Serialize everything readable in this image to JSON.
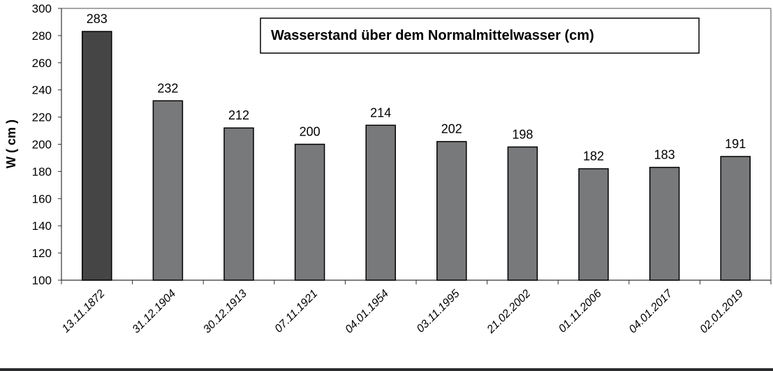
{
  "chart_data": {
    "type": "bar",
    "title": "",
    "ylabel": "W ( cm )",
    "xlabel": "",
    "ylim": [
      100,
      300
    ],
    "yticks": [
      100,
      120,
      140,
      160,
      180,
      200,
      220,
      240,
      260,
      280,
      300
    ],
    "categories": [
      "13.11.1872",
      "31.12.1904",
      "30.12.1913",
      "07.11.1921",
      "04.01.1954",
      "03.11.1995",
      "21.02.2002",
      "01.11.2006",
      "04.01.2017",
      "02.01.2019"
    ],
    "values": [
      283,
      232,
      212,
      200,
      214,
      202,
      198,
      182,
      183,
      191
    ],
    "legend": "Wasserstand über dem Normalmittelwasser (cm)",
    "legend_position": "top",
    "grid": false,
    "colors": {
      "highlight": "#454545",
      "bar": "#77797b"
    }
  }
}
